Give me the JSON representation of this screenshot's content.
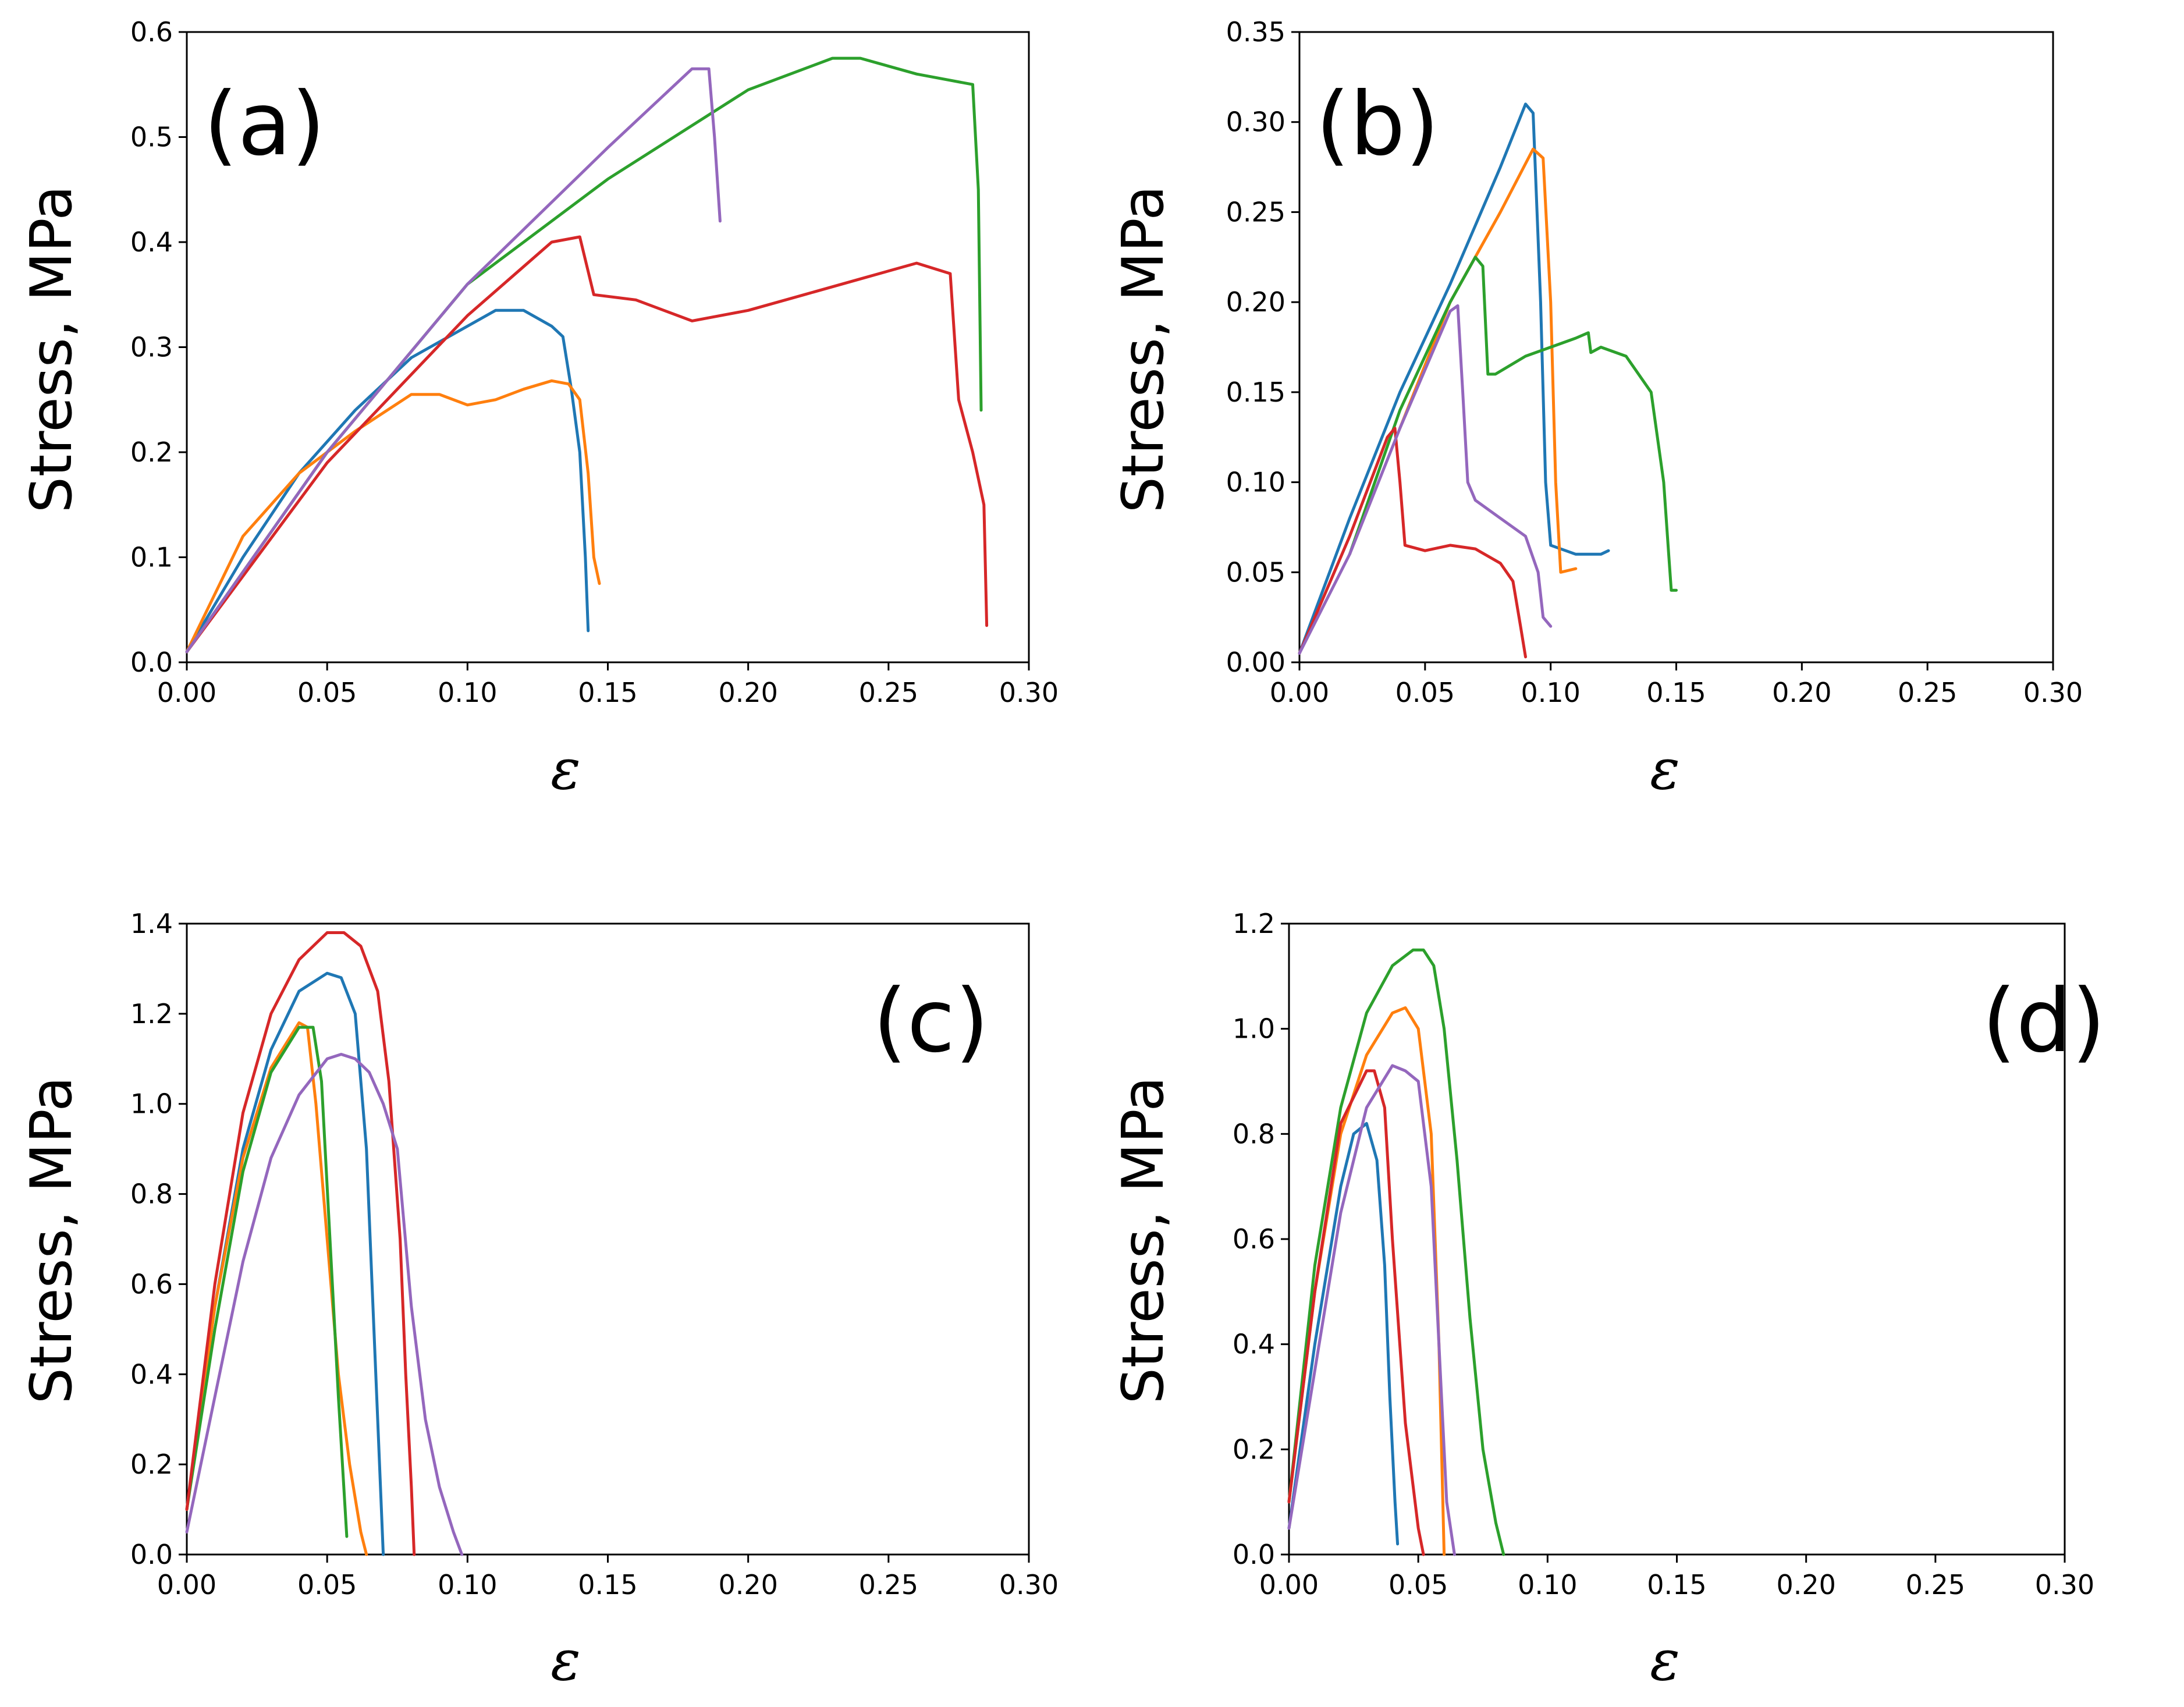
{
  "chart_data": [
    {
      "type": "line",
      "panel_label": "(a)",
      "xlabel": "ε",
      "ylabel": "Stress, MPa",
      "xlim": [
        0,
        0.3
      ],
      "ylim": [
        0,
        0.6
      ],
      "x_ticks": [
        0,
        0.05,
        0.1,
        0.15,
        0.2,
        0.25,
        0.3
      ],
      "x_tick_labels": [
        "0.00",
        "0.05",
        "0.10",
        "0.15",
        "0.20",
        "0.25",
        "0.30"
      ],
      "y_ticks": [
        0,
        0.1,
        0.2,
        0.3,
        0.4,
        0.5,
        0.6
      ],
      "y_tick_labels": [
        "0.0",
        "0.1",
        "0.2",
        "0.3",
        "0.4",
        "0.5",
        "0.6"
      ],
      "grid": false,
      "series": [
        {
          "name": "blue",
          "color": "#1f77b4",
          "x": [
            0,
            0.02,
            0.04,
            0.06,
            0.08,
            0.1,
            0.11,
            0.12,
            0.13,
            0.134,
            0.137,
            0.14,
            0.142,
            0.143
          ],
          "y": [
            0.01,
            0.1,
            0.18,
            0.24,
            0.29,
            0.32,
            0.335,
            0.335,
            0.32,
            0.31,
            0.26,
            0.2,
            0.1,
            0.03
          ]
        },
        {
          "name": "orange",
          "color": "#ff7f0e",
          "x": [
            0,
            0.02,
            0.04,
            0.06,
            0.08,
            0.09,
            0.1,
            0.11,
            0.12,
            0.13,
            0.136,
            0.14,
            0.143,
            0.145,
            0.147
          ],
          "y": [
            0.01,
            0.12,
            0.18,
            0.22,
            0.255,
            0.255,
            0.245,
            0.25,
            0.26,
            0.268,
            0.265,
            0.25,
            0.18,
            0.1,
            0.075
          ]
        },
        {
          "name": "green",
          "color": "#2ca02c",
          "x": [
            0,
            0.05,
            0.1,
            0.15,
            0.2,
            0.23,
            0.24,
            0.26,
            0.27,
            0.28,
            0.282,
            0.283
          ],
          "y": [
            0.01,
            0.2,
            0.36,
            0.46,
            0.545,
            0.575,
            0.575,
            0.56,
            0.555,
            0.55,
            0.45,
            0.24
          ]
        },
        {
          "name": "red",
          "color": "#d62728",
          "x": [
            0,
            0.05,
            0.1,
            0.13,
            0.14,
            0.145,
            0.16,
            0.18,
            0.2,
            0.22,
            0.24,
            0.26,
            0.272,
            0.275,
            0.28,
            0.284,
            0.285
          ],
          "y": [
            0.01,
            0.19,
            0.33,
            0.4,
            0.405,
            0.35,
            0.345,
            0.325,
            0.335,
            0.35,
            0.365,
            0.38,
            0.37,
            0.25,
            0.2,
            0.15,
            0.035
          ]
        },
        {
          "name": "purple",
          "color": "#9467bd",
          "x": [
            0,
            0.05,
            0.1,
            0.15,
            0.18,
            0.186,
            0.188,
            0.19
          ],
          "y": [
            0.01,
            0.2,
            0.36,
            0.49,
            0.565,
            0.565,
            0.5,
            0.42
          ]
        }
      ]
    },
    {
      "type": "line",
      "panel_label": "(b)",
      "xlabel": "ε",
      "ylabel": "Stress, MPa",
      "xlim": [
        0,
        0.3
      ],
      "ylim": [
        0,
        0.35
      ],
      "x_ticks": [
        0,
        0.05,
        0.1,
        0.15,
        0.2,
        0.25,
        0.3
      ],
      "x_tick_labels": [
        "0.00",
        "0.05",
        "0.10",
        "0.15",
        "0.20",
        "0.25",
        "0.30"
      ],
      "y_ticks": [
        0,
        0.05,
        0.1,
        0.15,
        0.2,
        0.25,
        0.3,
        0.35
      ],
      "y_tick_labels": [
        "0.00",
        "0.05",
        "0.10",
        "0.15",
        "0.20",
        "0.25",
        "0.30",
        "0.35"
      ],
      "grid": false,
      "series": [
        {
          "name": "blue",
          "color": "#1f77b4",
          "x": [
            0,
            0.02,
            0.04,
            0.06,
            0.08,
            0.09,
            0.093,
            0.096,
            0.098,
            0.1,
            0.11,
            0.12,
            0.123
          ],
          "y": [
            0.005,
            0.08,
            0.15,
            0.21,
            0.275,
            0.31,
            0.305,
            0.2,
            0.1,
            0.065,
            0.06,
            0.06,
            0.062
          ]
        },
        {
          "name": "orange",
          "color": "#ff7f0e",
          "x": [
            0.04,
            0.06,
            0.08,
            0.093,
            0.097,
            0.1,
            0.102,
            0.104,
            0.11
          ],
          "y": [
            0.13,
            0.2,
            0.25,
            0.285,
            0.28,
            0.2,
            0.1,
            0.05,
            0.052
          ]
        },
        {
          "name": "green",
          "color": "#2ca02c",
          "x": [
            0.02,
            0.04,
            0.06,
            0.07,
            0.073,
            0.075,
            0.078,
            0.09,
            0.1,
            0.11,
            0.115,
            0.116,
            0.12,
            0.13,
            0.14,
            0.145,
            0.147,
            0.148,
            0.15
          ],
          "y": [
            0.06,
            0.14,
            0.2,
            0.225,
            0.22,
            0.16,
            0.16,
            0.17,
            0.175,
            0.18,
            0.183,
            0.172,
            0.175,
            0.17,
            0.15,
            0.1,
            0.06,
            0.04,
            0.04
          ]
        },
        {
          "name": "red",
          "color": "#d62728",
          "x": [
            0,
            0.02,
            0.035,
            0.038,
            0.04,
            0.042,
            0.05,
            0.06,
            0.07,
            0.08,
            0.085,
            0.088,
            0.09
          ],
          "y": [
            0.005,
            0.07,
            0.125,
            0.13,
            0.1,
            0.065,
            0.062,
            0.065,
            0.063,
            0.055,
            0.045,
            0.02,
            0.003
          ]
        },
        {
          "name": "purple",
          "color": "#9467bd",
          "x": [
            0,
            0.02,
            0.04,
            0.06,
            0.063,
            0.065,
            0.067,
            0.07,
            0.08,
            0.09,
            0.095,
            0.097,
            0.1
          ],
          "y": [
            0.005,
            0.06,
            0.13,
            0.195,
            0.198,
            0.15,
            0.1,
            0.09,
            0.08,
            0.07,
            0.05,
            0.025,
            0.02
          ]
        }
      ]
    },
    {
      "type": "line",
      "panel_label": "(c)",
      "xlabel": "ε",
      "ylabel": "Stress, MPa",
      "xlim": [
        0,
        0.3
      ],
      "ylim": [
        0,
        1.4
      ],
      "x_ticks": [
        0,
        0.05,
        0.1,
        0.15,
        0.2,
        0.25,
        0.3
      ],
      "x_tick_labels": [
        "0.00",
        "0.05",
        "0.10",
        "0.15",
        "0.20",
        "0.25",
        "0.30"
      ],
      "y_ticks": [
        0,
        0.2,
        0.4,
        0.6,
        0.8,
        1.0,
        1.2,
        1.4
      ],
      "y_tick_labels": [
        "0.0",
        "0.2",
        "0.4",
        "0.6",
        "0.8",
        "1.0",
        "1.2",
        "1.4"
      ],
      "grid": false,
      "series": [
        {
          "name": "blue",
          "color": "#1f77b4",
          "x": [
            0,
            0.01,
            0.02,
            0.03,
            0.04,
            0.05,
            0.055,
            0.06,
            0.064,
            0.066,
            0.068,
            0.07
          ],
          "y": [
            0.1,
            0.55,
            0.9,
            1.12,
            1.25,
            1.29,
            1.28,
            1.2,
            0.9,
            0.6,
            0.3,
            0.0
          ]
        },
        {
          "name": "orange",
          "color": "#ff7f0e",
          "x": [
            0,
            0.01,
            0.02,
            0.03,
            0.04,
            0.043,
            0.046,
            0.05,
            0.054,
            0.058,
            0.062,
            0.064
          ],
          "y": [
            0.1,
            0.55,
            0.88,
            1.08,
            1.18,
            1.17,
            1.0,
            0.7,
            0.4,
            0.2,
            0.05,
            0.0
          ]
        },
        {
          "name": "green",
          "color": "#2ca02c",
          "x": [
            0,
            0.01,
            0.02,
            0.03,
            0.04,
            0.045,
            0.048,
            0.051,
            0.054,
            0.057
          ],
          "y": [
            0.1,
            0.5,
            0.85,
            1.07,
            1.17,
            1.17,
            1.05,
            0.7,
            0.35,
            0.04
          ]
        },
        {
          "name": "red",
          "color": "#d62728",
          "x": [
            0,
            0.01,
            0.02,
            0.03,
            0.04,
            0.05,
            0.056,
            0.062,
            0.068,
            0.072,
            0.076,
            0.078,
            0.08,
            0.081
          ],
          "y": [
            0.1,
            0.6,
            0.98,
            1.2,
            1.32,
            1.38,
            1.38,
            1.35,
            1.25,
            1.05,
            0.7,
            0.4,
            0.15,
            0.0
          ]
        },
        {
          "name": "purple",
          "color": "#9467bd",
          "x": [
            0,
            0.01,
            0.02,
            0.03,
            0.04,
            0.05,
            0.055,
            0.06,
            0.065,
            0.07,
            0.075,
            0.08,
            0.085,
            0.09,
            0.095,
            0.098
          ],
          "y": [
            0.05,
            0.35,
            0.65,
            0.88,
            1.02,
            1.1,
            1.11,
            1.1,
            1.07,
            1.0,
            0.9,
            0.55,
            0.3,
            0.15,
            0.05,
            0.0
          ]
        }
      ]
    },
    {
      "type": "line",
      "panel_label": "(d)",
      "xlabel": "ε",
      "ylabel": "Stress, MPa",
      "xlim": [
        0,
        0.3
      ],
      "ylim": [
        0,
        1.2
      ],
      "x_ticks": [
        0,
        0.05,
        0.1,
        0.15,
        0.2,
        0.25,
        0.3
      ],
      "x_tick_labels": [
        "0.00",
        "0.05",
        "0.10",
        "0.15",
        "0.20",
        "0.25",
        "0.30"
      ],
      "y_ticks": [
        0,
        0.2,
        0.4,
        0.6,
        0.8,
        1.0,
        1.2
      ],
      "y_tick_labels": [
        "0.0",
        "0.2",
        "0.4",
        "0.6",
        "0.8",
        "1.0",
        "1.2"
      ],
      "grid": false,
      "series": [
        {
          "name": "blue",
          "color": "#1f77b4",
          "x": [
            0,
            0.01,
            0.02,
            0.025,
            0.03,
            0.034,
            0.037,
            0.039,
            0.041,
            0.042
          ],
          "y": [
            0.05,
            0.4,
            0.7,
            0.8,
            0.82,
            0.75,
            0.55,
            0.3,
            0.1,
            0.02
          ]
        },
        {
          "name": "orange",
          "color": "#ff7f0e",
          "x": [
            0,
            0.01,
            0.02,
            0.03,
            0.04,
            0.045,
            0.05,
            0.055,
            0.058,
            0.06
          ],
          "y": [
            0.1,
            0.5,
            0.8,
            0.95,
            1.03,
            1.04,
            1.0,
            0.8,
            0.4,
            0.0
          ]
        },
        {
          "name": "green",
          "color": "#2ca02c",
          "x": [
            0,
            0.01,
            0.02,
            0.03,
            0.04,
            0.048,
            0.052,
            0.056,
            0.06,
            0.065,
            0.07,
            0.075,
            0.08,
            0.083
          ],
          "y": [
            0.1,
            0.55,
            0.85,
            1.03,
            1.12,
            1.15,
            1.15,
            1.12,
            1.0,
            0.75,
            0.45,
            0.2,
            0.06,
            0.0
          ]
        },
        {
          "name": "red",
          "color": "#d62728",
          "x": [
            0,
            0.01,
            0.02,
            0.03,
            0.033,
            0.037,
            0.04,
            0.045,
            0.05,
            0.052
          ],
          "y": [
            0.1,
            0.5,
            0.82,
            0.92,
            0.92,
            0.85,
            0.6,
            0.25,
            0.05,
            0.0
          ]
        },
        {
          "name": "purple",
          "color": "#9467bd",
          "x": [
            0,
            0.01,
            0.02,
            0.03,
            0.04,
            0.045,
            0.05,
            0.055,
            0.058,
            0.061,
            0.064
          ],
          "y": [
            0.05,
            0.35,
            0.65,
            0.85,
            0.93,
            0.92,
            0.9,
            0.7,
            0.4,
            0.1,
            0.0
          ]
        }
      ]
    }
  ]
}
